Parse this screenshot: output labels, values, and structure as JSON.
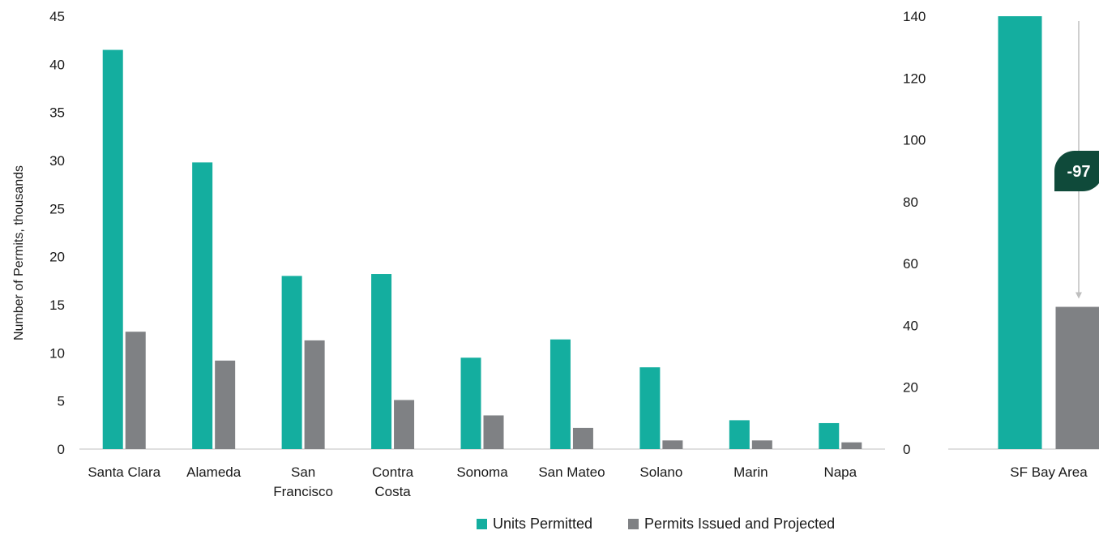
{
  "colors": {
    "units": "#14ae9f",
    "permits": "#7f8184",
    "badge": "#0f4a3a",
    "axis": "#bfbfbf"
  },
  "legend": {
    "units_label": "Units Permitted",
    "permits_label": "Permits Issued and Projected"
  },
  "chart_data": [
    {
      "type": "bar",
      "ylabel": "Number of Permits, thousands",
      "ylim": [
        0,
        45
      ],
      "yticks": [
        0,
        5,
        10,
        15,
        20,
        25,
        30,
        35,
        40,
        45
      ],
      "categories": [
        [
          "Santa Clara"
        ],
        [
          "Alameda"
        ],
        [
          "San",
          "Francisco"
        ],
        [
          "Contra",
          "Costa"
        ],
        [
          "Sonoma"
        ],
        [
          "San Mateo"
        ],
        [
          "Solano"
        ],
        [
          "Marin"
        ],
        [
          "Napa"
        ]
      ],
      "series": [
        {
          "name": "Units Permitted",
          "values": [
            41.5,
            29.8,
            18.0,
            18.2,
            9.5,
            11.4,
            8.5,
            3.0,
            2.7
          ]
        },
        {
          "name": "Permits Issued and Projected",
          "values": [
            12.2,
            9.2,
            11.3,
            5.1,
            3.5,
            2.2,
            0.9,
            0.9,
            0.7
          ]
        }
      ]
    },
    {
      "type": "bar",
      "ylim": [
        0,
        140
      ],
      "yticks": [
        0,
        20,
        40,
        60,
        80,
        100,
        120,
        140
      ],
      "categories": [
        [
          "SF Bay Area"
        ]
      ],
      "series": [
        {
          "name": "Units Permitted",
          "values": [
            140
          ]
        },
        {
          "name": "Permits Issued and Projected",
          "values": [
            46
          ]
        }
      ],
      "annotation": {
        "text": "-97"
      }
    }
  ]
}
